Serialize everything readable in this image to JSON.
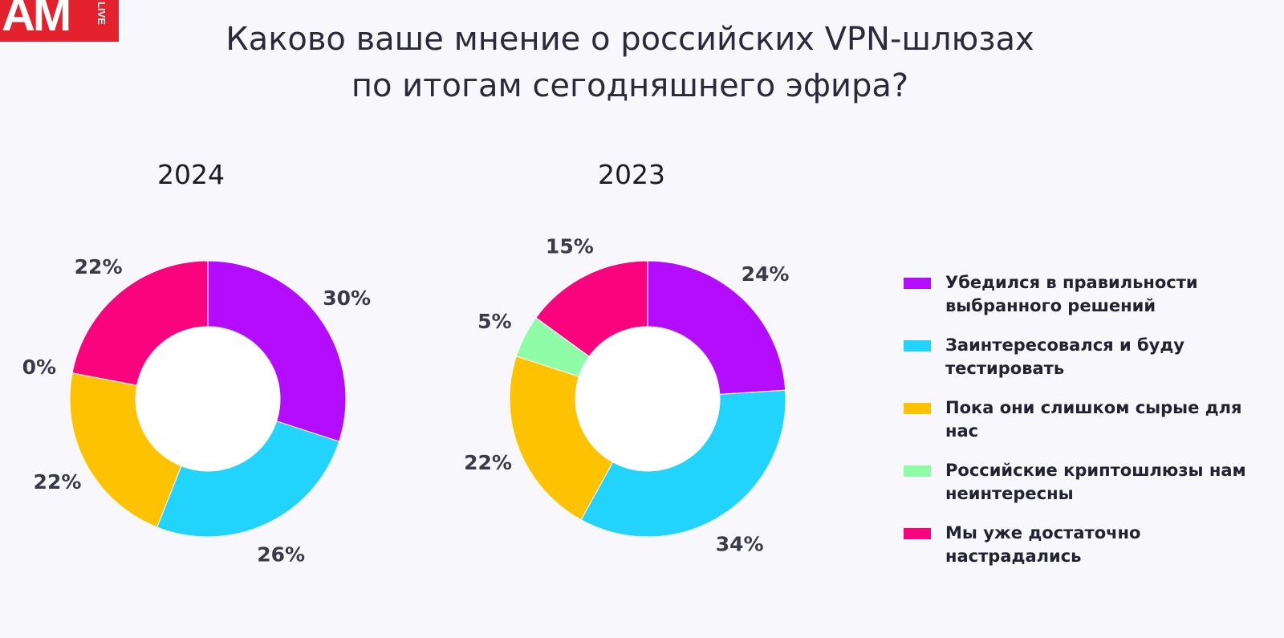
{
  "logo": {
    "main": "AM",
    "live": "LIVE"
  },
  "title_lines": [
    "Каково ваше мнение о российских VPN-шлюзах",
    "по итогам сегодняшнего эфира?"
  ],
  "colors": {
    "purple": "#b40cff",
    "cyan": "#22d3fb",
    "yellow": "#fdc201",
    "green": "#8ffca8",
    "pink": "#f9037e"
  },
  "chart_data": [
    {
      "type": "pie",
      "title": "2024",
      "categories": [
        "Убедился в правильности выбранного решений",
        "Заинтересовался и буду тестировать",
        "Пока они слишком сырые для нас",
        "Российские криптошлюзы нам неинтересны",
        "Мы уже достаточно настрадались"
      ],
      "values": [
        30,
        26,
        22,
        0,
        22
      ],
      "value_labels": [
        "30%",
        "26%",
        "22%",
        "0%",
        "22%"
      ],
      "colors": [
        "#b40cff",
        "#22d3fb",
        "#fdc201",
        "#8ffca8",
        "#f9037e"
      ],
      "legend": "right"
    },
    {
      "type": "pie",
      "title": "2023",
      "categories": [
        "Убедился в правильности выбранного решений",
        "Заинтересовался и буду тестировать",
        "Пока они слишком сырые для нас",
        "Российские криптошлюзы нам неинтересны",
        "Мы уже достаточно настрадались"
      ],
      "values": [
        24,
        34,
        22,
        5,
        15
      ],
      "value_labels": [
        "24%",
        "34%",
        "22%",
        "5%",
        "15%"
      ],
      "colors": [
        "#b40cff",
        "#22d3fb",
        "#fdc201",
        "#8ffca8",
        "#f9037e"
      ],
      "legend": "right"
    }
  ],
  "legend_items": [
    {
      "label": "Убедился в правильности выбранного решений",
      "color": "#b40cff"
    },
    {
      "label": "Заинтересовался и буду тестировать",
      "color": "#22d3fb"
    },
    {
      "label": "Пока они слишком сырые для нас",
      "color": "#fdc201"
    },
    {
      "label": "Российские криптошлюзы нам неинтересны",
      "color": "#8ffca8"
    },
    {
      "label": "Мы уже достаточно настрадались",
      "color": "#f9037e"
    }
  ]
}
